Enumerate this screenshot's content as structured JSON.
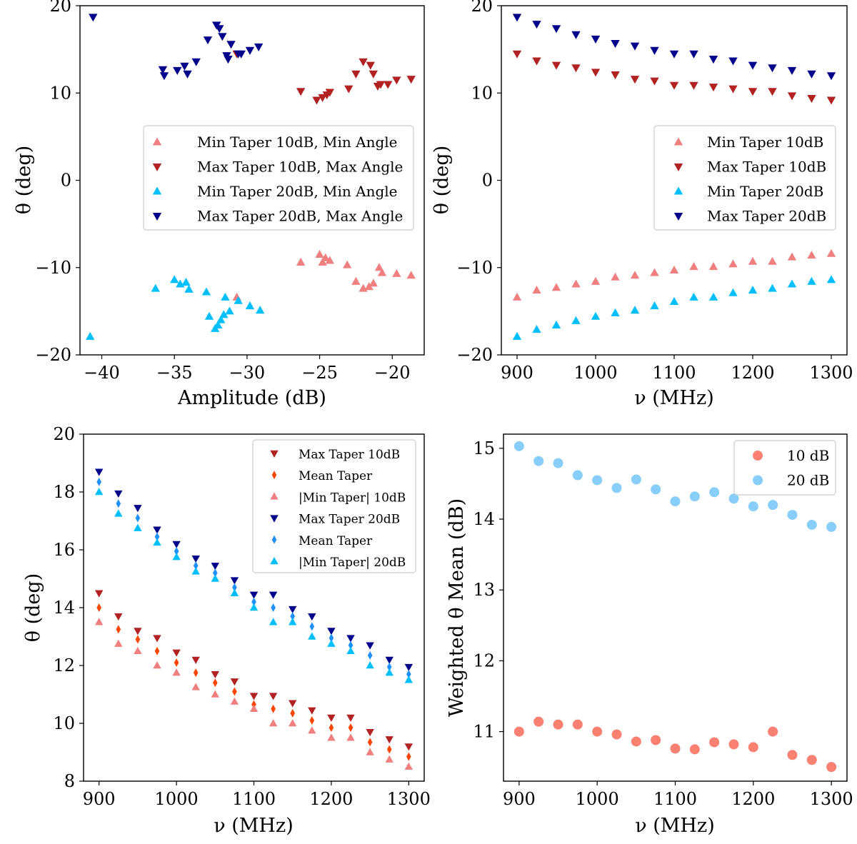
{
  "charts": [
    {
      "id": "top-left",
      "type": "scatter",
      "xlabel": "Amplitude (dB)",
      "ylabel": "θ (deg)",
      "xlim": [
        -41.5,
        -17.8
      ],
      "ylim": [
        -20,
        20
      ],
      "xticks": [
        -40,
        -35,
        -30,
        -25,
        -20
      ],
      "yticks": [
        -20,
        -10,
        0,
        10,
        20
      ],
      "xtick_labels": [
        "−40",
        "−35",
        "−30",
        "−25",
        "−20"
      ],
      "ytick_labels": [
        "−20",
        "−10",
        "0",
        "10",
        "20"
      ],
      "legend_position": "center-right",
      "series": [
        {
          "name": "Min Taper 10dB, Min Angle",
          "marker": "up",
          "color": "#f08080",
          "x": [
            -26.3,
            -25.0,
            -24.6,
            -24.3,
            -24.8,
            -23.1,
            -22.5,
            -22.0,
            -21.6,
            -21.3,
            -20.9,
            -20.7,
            -19.7,
            -18.7,
            -30.7
          ],
          "y": [
            -9.4,
            -8.5,
            -8.9,
            -9.2,
            -9.4,
            -9.7,
            -11.6,
            -12.4,
            -12.2,
            -11.8,
            -10.0,
            -10.6,
            -10.7,
            -10.9,
            -13.4
          ]
        },
        {
          "name": "Max Taper 10dB, Max Angle",
          "marker": "down",
          "color": "#b22222",
          "x": [
            -26.3,
            -25.2,
            -24.8,
            -24.5,
            -24.3,
            -23.0,
            -22.5,
            -22.0,
            -21.5,
            -21.3,
            -21.0,
            -20.8,
            -20.3,
            -19.7,
            -18.7,
            -30.7
          ],
          "y": [
            10.2,
            9.2,
            9.5,
            9.8,
            10.1,
            10.5,
            12.2,
            13.6,
            13.2,
            12.2,
            10.8,
            11.0,
            11.0,
            11.5,
            11.6,
            14.5
          ]
        },
        {
          "name": "Min Taper 20dB, Min Angle",
          "marker": "up",
          "color": "#00bfff",
          "x": [
            -40.8,
            -36.3,
            -35.0,
            -34.6,
            -34.2,
            -34.0,
            -32.8,
            -32.6,
            -32.2,
            -32.0,
            -31.8,
            -31.6,
            -31.5,
            -31.2,
            -30.6,
            -29.8,
            -29.1
          ],
          "y": [
            -17.9,
            -12.4,
            -11.4,
            -11.9,
            -11.7,
            -12.5,
            -12.8,
            -15.6,
            -17.0,
            -16.6,
            -16.0,
            -15.4,
            -13.4,
            -15.0,
            -13.8,
            -14.4,
            -14.9
          ]
        },
        {
          "name": "Max Taper 20dB, Max Angle",
          "marker": "down",
          "color": "#00008b",
          "x": [
            -40.6,
            -35.8,
            -35.7,
            -34.8,
            -34.3,
            -34.1,
            -33.5,
            -32.7,
            -32.1,
            -31.9,
            -31.7,
            -31.4,
            -31.3,
            -31.1,
            -30.6,
            -30.4,
            -29.8,
            -29.2
          ],
          "y": [
            18.7,
            12.7,
            12.0,
            12.6,
            13.1,
            12.2,
            13.6,
            16.1,
            17.8,
            17.4,
            16.5,
            14.3,
            13.9,
            15.6,
            14.5,
            14.5,
            14.9,
            15.3
          ]
        }
      ]
    },
    {
      "id": "top-right",
      "type": "scatter",
      "xlabel": "ν (MHz)",
      "ylabel": "θ (deg)",
      "xlim": [
        880,
        1320
      ],
      "ylim": [
        -20,
        20
      ],
      "xticks": [
        900,
        1000,
        1100,
        1200,
        1300
      ],
      "yticks": [
        -20,
        -10,
        0,
        10,
        20
      ],
      "xtick_labels": [
        "900",
        "1000",
        "1100",
        "1200",
        "1300"
      ],
      "ytick_labels": [
        "−20",
        "−10",
        "0",
        "10",
        "20"
      ],
      "legend_position": "center-right",
      "x": [
        900,
        925,
        950,
        975,
        1000,
        1025,
        1050,
        1075,
        1100,
        1125,
        1150,
        1175,
        1200,
        1225,
        1250,
        1275,
        1300
      ],
      "series": [
        {
          "name": "Min Taper 10dB",
          "marker": "up",
          "color": "#f08080",
          "values": [
            -13.4,
            -12.6,
            -12.3,
            -11.9,
            -11.6,
            -11.1,
            -10.9,
            -10.6,
            -10.3,
            -9.9,
            -9.9,
            -9.6,
            -9.3,
            -9.3,
            -8.8,
            -8.6,
            -8.4
          ]
        },
        {
          "name": "Max Taper 10dB",
          "marker": "down",
          "color": "#b22222",
          "values": [
            14.5,
            13.7,
            13.2,
            12.9,
            12.4,
            12.1,
            11.6,
            11.4,
            10.9,
            10.9,
            10.7,
            10.5,
            10.2,
            10.2,
            9.7,
            9.4,
            9.2
          ]
        },
        {
          "name": "Min Taper 20dB",
          "marker": "up",
          "color": "#00bfff",
          "values": [
            -17.9,
            -17.1,
            -16.6,
            -16.1,
            -15.6,
            -15.2,
            -14.9,
            -14.4,
            -13.9,
            -13.4,
            -13.4,
            -12.9,
            -12.6,
            -12.4,
            -11.9,
            -11.6,
            -11.4
          ]
        },
        {
          "name": "Max Taper 20dB",
          "marker": "down",
          "color": "#00008b",
          "values": [
            18.7,
            17.9,
            17.4,
            16.7,
            16.2,
            15.7,
            15.4,
            14.9,
            14.5,
            14.5,
            13.9,
            13.7,
            13.2,
            12.9,
            12.6,
            12.2,
            12.0
          ]
        }
      ]
    },
    {
      "id": "bottom-left",
      "type": "scatter",
      "xlabel": "ν (MHz)",
      "ylabel": "θ (deg)",
      "xlim": [
        880,
        1320
      ],
      "ylim": [
        8,
        20
      ],
      "xticks": [
        900,
        1000,
        1100,
        1200,
        1300
      ],
      "yticks": [
        8,
        10,
        12,
        14,
        16,
        18,
        20
      ],
      "xtick_labels": [
        "900",
        "1000",
        "1100",
        "1200",
        "1300"
      ],
      "ytick_labels": [
        "8",
        "10",
        "12",
        "14",
        "16",
        "18",
        "20"
      ],
      "legend_position": "top-right",
      "x": [
        900,
        925,
        950,
        975,
        1000,
        1025,
        1050,
        1075,
        1100,
        1125,
        1150,
        1175,
        1200,
        1225,
        1250,
        1275,
        1300
      ],
      "series": [
        {
          "name": "Max Taper 10dB",
          "marker": "down",
          "color": "#b22222",
          "values": [
            14.5,
            13.7,
            13.2,
            12.95,
            12.45,
            12.2,
            11.7,
            11.45,
            10.95,
            10.95,
            10.7,
            10.45,
            10.2,
            10.2,
            9.7,
            9.45,
            9.2
          ]
        },
        {
          "name": "Mean Taper",
          "marker": "diamond",
          "color": "#ff4500",
          "values": [
            14.0,
            13.25,
            12.9,
            12.5,
            12.1,
            11.75,
            11.4,
            11.1,
            10.65,
            10.5,
            10.35,
            10.1,
            9.85,
            9.85,
            9.35,
            9.1,
            8.85
          ]
        },
        {
          "name": "|Min Taper| 10dB",
          "marker": "up",
          "color": "#f08080",
          "values": [
            13.5,
            12.75,
            12.5,
            12.0,
            11.75,
            11.25,
            11.0,
            10.75,
            10.5,
            10.0,
            10.0,
            9.75,
            9.5,
            9.5,
            9.0,
            8.75,
            8.5
          ]
        },
        {
          "name": "Max Taper 20dB",
          "marker": "down",
          "color": "#00008b",
          "values": [
            18.7,
            17.95,
            17.45,
            16.7,
            16.2,
            15.7,
            15.45,
            14.95,
            14.45,
            14.45,
            13.95,
            13.7,
            13.2,
            12.95,
            12.7,
            12.2,
            11.95
          ]
        },
        {
          "name": "Mean Taper",
          "marker": "diamond",
          "color": "#1e90ff",
          "values": [
            18.35,
            17.6,
            17.1,
            16.45,
            15.95,
            15.45,
            15.2,
            14.7,
            14.2,
            14.0,
            13.7,
            13.35,
            12.95,
            12.7,
            12.35,
            11.95,
            11.7
          ]
        },
        {
          "name": "|Min Taper| 20dB",
          "marker": "up",
          "color": "#00bfff",
          "values": [
            18.0,
            17.25,
            16.75,
            16.25,
            15.75,
            15.25,
            15.0,
            14.5,
            14.0,
            13.5,
            13.5,
            13.0,
            12.75,
            12.5,
            12.0,
            11.75,
            11.5
          ]
        }
      ]
    },
    {
      "id": "bottom-right",
      "type": "scatter",
      "xlabel": "ν (MHz)",
      "ylabel": "Weighted θ Mean (dB)",
      "xlim": [
        880,
        1320
      ],
      "ylim": [
        10.3,
        15.2
      ],
      "xticks": [
        900,
        1000,
        1100,
        1200,
        1300
      ],
      "yticks": [
        11,
        12,
        13,
        14,
        15
      ],
      "xtick_labels": [
        "900",
        "1000",
        "1100",
        "1200",
        "1300"
      ],
      "ytick_labels": [
        "11",
        "12",
        "13",
        "14",
        "15"
      ],
      "legend_position": "top-right",
      "x": [
        900,
        925,
        950,
        975,
        1000,
        1025,
        1050,
        1075,
        1100,
        1125,
        1150,
        1175,
        1200,
        1225,
        1250,
        1275,
        1300
      ],
      "series": [
        {
          "name": "10 dB",
          "marker": "circle",
          "color": "#fa8072",
          "values": [
            11.0,
            11.14,
            11.1,
            11.1,
            11.0,
            10.96,
            10.86,
            10.88,
            10.76,
            10.75,
            10.85,
            10.82,
            10.78,
            11.0,
            10.67,
            10.6,
            10.5
          ]
        },
        {
          "name": "20 dB",
          "marker": "circle",
          "color": "#87cefa",
          "values": [
            15.03,
            14.82,
            14.79,
            14.62,
            14.55,
            14.44,
            14.56,
            14.42,
            14.25,
            14.32,
            14.38,
            14.29,
            14.18,
            14.2,
            14.06,
            13.92,
            13.89
          ]
        }
      ]
    }
  ]
}
